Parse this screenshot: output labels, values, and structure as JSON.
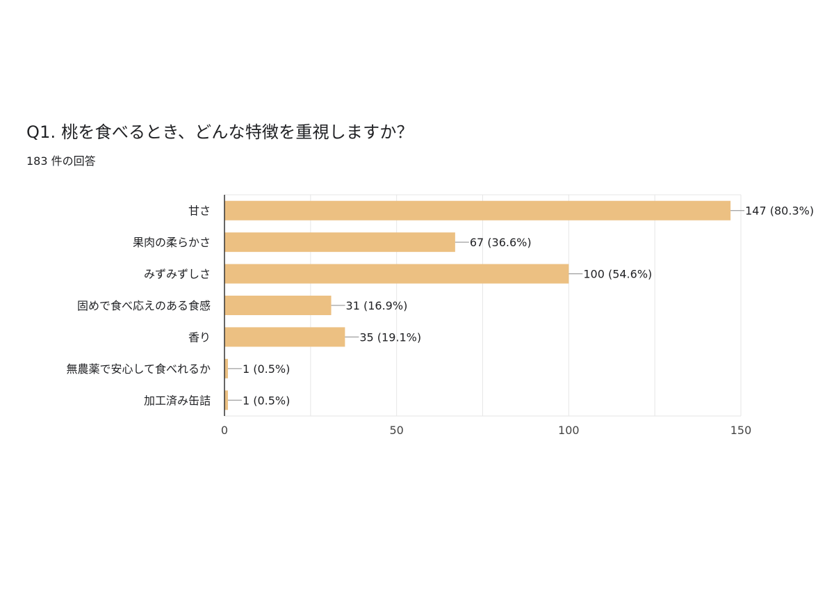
{
  "question": {
    "title": "Q1. 桃を食べるとき、どんな特徴を重視しますか？",
    "response_count": "183 件の回答"
  },
  "colors": {
    "bar": "#ecc082",
    "grid": "#e6e6e6",
    "axis": "#333333",
    "leader": "#888888"
  },
  "chart_data": {
    "type": "bar",
    "orientation": "horizontal",
    "categories": [
      "甘さ",
      "果肉の柔らかさ",
      "みずみずしさ",
      "固めで食べ応えのある食感",
      "香り",
      "無農薬で安心して食べれるか",
      "加工済み缶詰"
    ],
    "values": [
      147,
      67,
      100,
      31,
      35,
      1,
      1
    ],
    "value_labels": [
      "147 (80.3%)",
      "67 (36.6%)",
      "100 (54.6%)",
      "31 (16.9%)",
      "35 (19.1%)",
      "1 (0.5%)",
      "1 (0.5%)"
    ],
    "xlim": [
      0,
      150
    ],
    "xticks": [
      0,
      50,
      100,
      150
    ],
    "xtick_labels": [
      "0",
      "50",
      "100",
      "150"
    ],
    "grid": true,
    "legend": "none"
  }
}
